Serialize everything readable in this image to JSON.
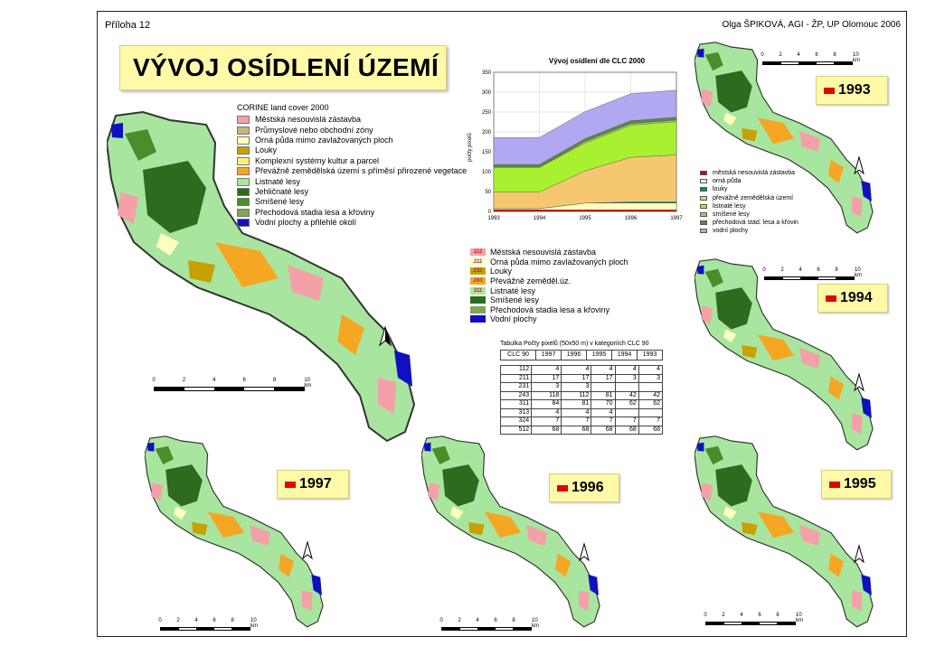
{
  "header": {
    "left": "Příloha 12",
    "right": "Olga ŠPIKOVÁ, AGI - ŽP, UP Olomouc 2006"
  },
  "title": "VÝVOJ OSÍDLENÍ ÚZEMÍ",
  "corine_legend": {
    "title": "CORINE land cover 2000",
    "items": [
      {
        "label": "Městská nesouvislá zástavba",
        "color": "#f4a0a8"
      },
      {
        "label": "Průmyslové nebo obchodní zóny",
        "color": "#c9b37a"
      },
      {
        "label": "Orná půda mimo zavlažovaných ploch",
        "color": "#ffffc0"
      },
      {
        "label": "Louky",
        "color": "#c8a000"
      },
      {
        "label": "Komplexní systémy kultur a parcel",
        "color": "#fff07a"
      },
      {
        "label": "Převážně zemědělská území s příměsí přirozené vegetace",
        "color": "#f5a623"
      },
      {
        "label": "Listnaté lesy",
        "color": "#a8e6a0"
      },
      {
        "label": "Jehličnaté lesy",
        "color": "#2f6b1f"
      },
      {
        "label": "Smíšené lesy",
        "color": "#4c8c2a"
      },
      {
        "label": "Přechodová stadia lesa a křoviny",
        "color": "#7fa45a"
      },
      {
        "label": "Vodní plochy a přilehlé okolí",
        "color": "#1010c0"
      }
    ]
  },
  "clc90_legend": {
    "items": [
      {
        "code": "112",
        "label": "Městská nesouvislá zástavba",
        "color": "#f4a0a8"
      },
      {
        "code": "211",
        "label": "Orná půda mimo zavlažovaných ploch",
        "color": "#ffffc0"
      },
      {
        "code": "231",
        "label": "Louky",
        "color": "#c8a000"
      },
      {
        "code": "243",
        "label": "Převážně zeměděl.úz.",
        "color": "#f5a623"
      },
      {
        "code": "311",
        "label": "Listnaté lesy",
        "color": "#a8e6a0"
      },
      {
        "code": "",
        "label": "Smíšené lesy",
        "color": "#2f6b1f"
      },
      {
        "code": "",
        "label": "Přechodová stadia lesa a křoviny",
        "color": "#7fa45a"
      },
      {
        "code": "",
        "label": "Vodní plochy",
        "color": "#1010c0"
      }
    ]
  },
  "chart_legend": {
    "items": [
      {
        "label": "městská nesouvislá zástavba",
        "color": "#cc0000"
      },
      {
        "label": "orná půda",
        "color": "#ffffc0"
      },
      {
        "label": "louky",
        "color": "#009060"
      },
      {
        "label": "převážně zemědělská území",
        "color": "#f5c870"
      },
      {
        "label": "listnaté lesy",
        "color": "#a8f030"
      },
      {
        "label": "smíšené lesy",
        "color": "#9ad06a"
      },
      {
        "label": "přechodová stád. lesa a křovin",
        "color": "#5a8a3a"
      },
      {
        "label": "vodní plochy",
        "color": "#b0a8f0"
      }
    ]
  },
  "chart_data": {
    "type": "area",
    "title": "Vývoj osídlení dle CLC 2000",
    "ylabel": "počty pixelů",
    "xlabel": "",
    "x": [
      "1993",
      "1994",
      "1995",
      "1996",
      "1997"
    ],
    "ylim": [
      0,
      350
    ],
    "yticks": [
      0,
      50,
      100,
      150,
      200,
      250,
      300,
      350
    ],
    "series": [
      {
        "name": "městská nesouvislá zástavba",
        "color": "#cc0000",
        "values": [
          4,
          4,
          4,
          4,
          4
        ]
      },
      {
        "name": "orná půda",
        "color": "#ffffc0",
        "values": [
          3,
          3,
          17,
          17,
          17
        ]
      },
      {
        "name": "louky",
        "color": "#009060",
        "values": [
          0,
          0,
          0,
          3,
          3
        ]
      },
      {
        "name": "převážně zemědělská území",
        "color": "#f5c870",
        "values": [
          42,
          42,
          81,
          112,
          118
        ]
      },
      {
        "name": "listnaté lesy",
        "color": "#a8f030",
        "values": [
          62,
          62,
          70,
          81,
          84
        ]
      },
      {
        "name": "smíšené lesy",
        "color": "#9ad06a",
        "values": [
          0,
          0,
          4,
          4,
          4
        ]
      },
      {
        "name": "přechodová stád. lesa a křovin",
        "color": "#5a8a3a",
        "values": [
          7,
          7,
          7,
          7,
          7
        ]
      },
      {
        "name": "vodní plochy",
        "color": "#b0a8f0",
        "values": [
          68,
          68,
          68,
          68,
          68
        ]
      }
    ],
    "grid": true
  },
  "table": {
    "caption": "Tabulka Počty pixelů (50x50 m) v kategoriích CLC 90",
    "headers": [
      "CLC 90",
      "1997",
      "1996",
      "1995",
      "1994",
      "1993"
    ],
    "rows": [
      [
        "112",
        "4",
        "4",
        "4",
        "4",
        "4"
      ],
      [
        "211",
        "17",
        "17",
        "17",
        "3",
        "3"
      ],
      [
        "231",
        "3",
        "3",
        "",
        "",
        ""
      ],
      [
        "243",
        "118",
        "112",
        "81",
        "42",
        "42"
      ],
      [
        "311",
        "84",
        "81",
        "70",
        "62",
        "62"
      ],
      [
        "313",
        "4",
        "4",
        "4",
        "",
        ""
      ],
      [
        "324",
        "7",
        "7",
        "7",
        "7",
        "7"
      ],
      [
        "512",
        "68",
        "68",
        "68",
        "68",
        "68"
      ]
    ]
  },
  "years": {
    "y1993": "1993",
    "y1994": "1994",
    "y1995": "1995",
    "y1996": "1996",
    "y1997": "1997"
  },
  "scale": {
    "ticks": [
      "0",
      "2",
      "4",
      "6",
      "8",
      "10 km"
    ]
  },
  "north": "S"
}
